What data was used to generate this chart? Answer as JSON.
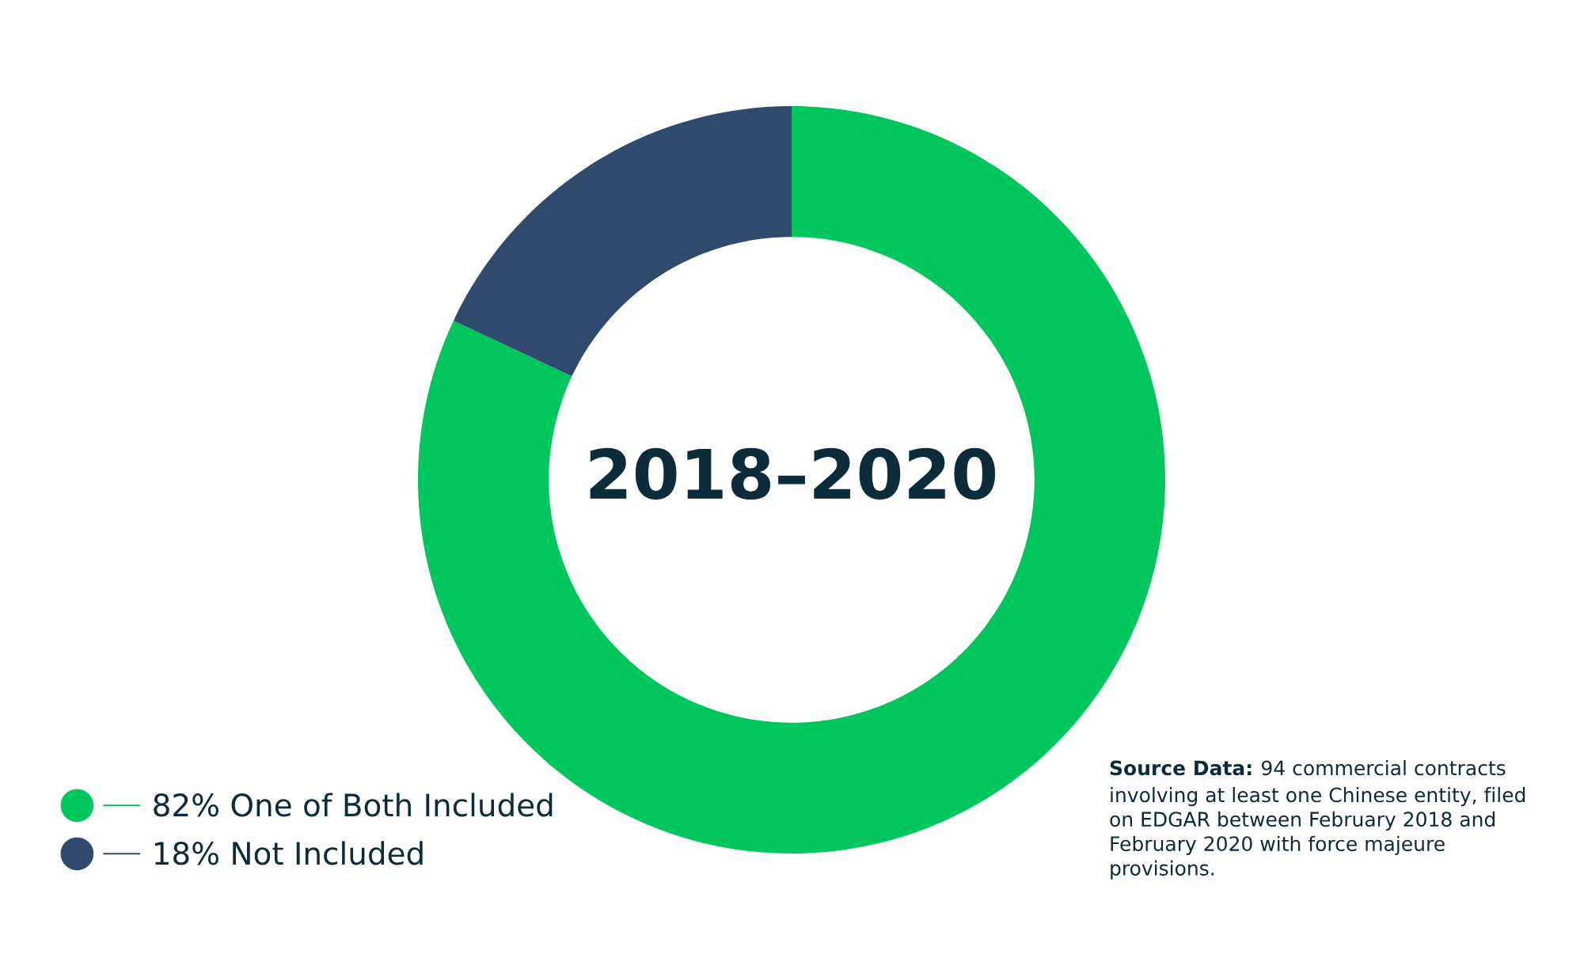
{
  "chart_data": {
    "type": "donut",
    "categories": [
      "One of Both Included",
      "Not Included"
    ],
    "values": [
      82,
      18
    ],
    "value_labels": [
      "82%",
      "18%"
    ],
    "colors": [
      "#00c65e",
      "#2f4a6d"
    ],
    "legend": "bottom left",
    "annotations": [
      "2018–2020",
      "Source Data:",
      "94 commercial contracts\ninvolving at least one Chinese entity, filed\non EDGAR between February 2018 and\nFebruary 2020 with force majeure\nprovisions."
    ]
  }
}
